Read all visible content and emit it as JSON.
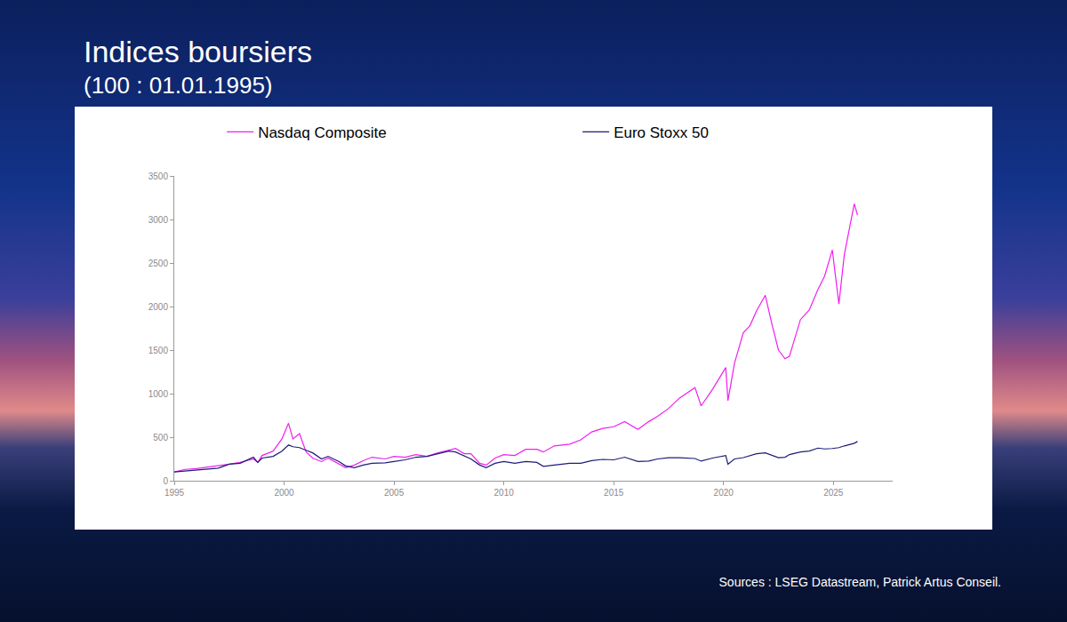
{
  "chart_data": {
    "type": "line",
    "title": "Indices boursiers",
    "subtitle": "(100 : 01.01.1995)",
    "source": "Sources : LSEG Datastream, Patrick Artus Conseil.",
    "x": [
      1995.0,
      1995.5,
      1996.0,
      1996.5,
      1997.0,
      1997.5,
      1998.0,
      1998.6,
      1998.8,
      1999.0,
      1999.5,
      1999.9,
      2000.2,
      2000.4,
      2000.7,
      2001.0,
      2001.3,
      2001.7,
      2002.0,
      2002.5,
      2002.8,
      2003.2,
      2003.6,
      2004.0,
      2004.6,
      2005.0,
      2005.5,
      2006.0,
      2006.5,
      2007.0,
      2007.5,
      2007.8,
      2008.2,
      2008.5,
      2008.9,
      2009.2,
      2009.6,
      2010.0,
      2010.5,
      2011.0,
      2011.5,
      2011.8,
      2012.3,
      2013.0,
      2013.5,
      2014.0,
      2014.5,
      2015.0,
      2015.5,
      2016.1,
      2016.6,
      2017.0,
      2017.5,
      2018.0,
      2018.7,
      2018.98,
      2019.5,
      2020.1,
      2020.2,
      2020.5,
      2020.9,
      2021.2,
      2021.5,
      2021.9,
      2022.2,
      2022.5,
      2022.8,
      2023.0,
      2023.5,
      2023.9,
      2024.3,
      2024.6,
      2024.95,
      2025.25,
      2025.5,
      2025.8,
      2025.95,
      2026.1
    ],
    "series": [
      {
        "name": "Nasdaq Composite",
        "color": "#f01ef0",
        "values": [
          100,
          130,
          140,
          155,
          170,
          190,
          210,
          250,
          210,
          290,
          340,
          480,
          660,
          480,
          540,
          330,
          260,
          220,
          260,
          190,
          150,
          180,
          230,
          270,
          250,
          280,
          270,
          300,
          280,
          320,
          350,
          370,
          310,
          310,
          200,
          180,
          260,
          300,
          290,
          360,
          360,
          330,
          400,
          420,
          470,
          560,
          600,
          620,
          680,
          590,
          680,
          740,
          830,
          950,
          1070,
          860,
          1050,
          1300,
          920,
          1350,
          1700,
          1780,
          1950,
          2130,
          1800,
          1500,
          1400,
          1430,
          1850,
          1960,
          2200,
          2350,
          2650,
          2030,
          2600,
          3000,
          3180,
          3050
        ]
      },
      {
        "name": "Euro Stoxx 50",
        "color": "#1c1c78",
        "values": [
          100,
          110,
          120,
          130,
          145,
          190,
          200,
          270,
          210,
          260,
          280,
          340,
          410,
          390,
          380,
          350,
          320,
          250,
          280,
          220,
          170,
          150,
          180,
          200,
          205,
          220,
          240,
          270,
          280,
          310,
          340,
          330,
          280,
          250,
          180,
          150,
          200,
          220,
          200,
          220,
          210,
          165,
          180,
          200,
          200,
          230,
          245,
          240,
          270,
          220,
          225,
          250,
          265,
          265,
          255,
          225,
          260,
          290,
          190,
          250,
          265,
          290,
          310,
          320,
          290,
          265,
          270,
          300,
          330,
          340,
          375,
          365,
          370,
          380,
          400,
          420,
          430,
          450
        ]
      }
    ],
    "xlim": [
      1995,
      2027.7
    ],
    "xticks": [
      1995,
      2000,
      2005,
      2010,
      2015,
      2020,
      2025
    ],
    "ylim": [
      0,
      3500
    ],
    "yticks": [
      0,
      500,
      1000,
      1500,
      2000,
      2500,
      3000,
      3500
    ],
    "y2lim": [
      0,
      3500
    ],
    "y2ticks": [
      0,
      500,
      1000,
      1500,
      2000,
      2500,
      3000,
      3500
    ],
    "grid": false,
    "legend": "top"
  }
}
